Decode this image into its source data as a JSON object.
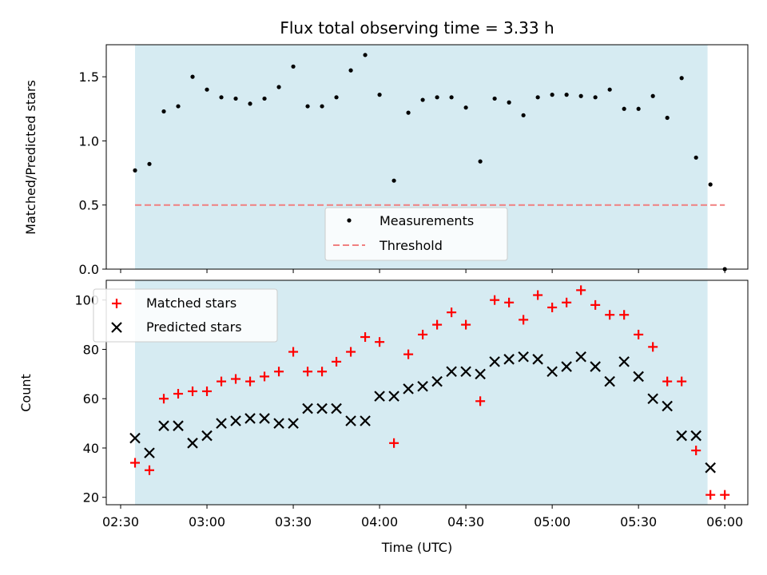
{
  "chart_data": [
    {
      "type": "scatter",
      "title": "Flux total observing time = 3.33 h",
      "ylabel": "Matched/Predicted stars",
      "xlim": [
        "02:25",
        "06:08"
      ],
      "ylim": [
        0,
        1.75
      ],
      "yticks": [
        "0.0",
        "0.5",
        "1.0",
        "1.5"
      ],
      "observing_window": [
        "02:35",
        "05:54"
      ],
      "threshold": 0.5,
      "legend": {
        "position": "bottom-center",
        "entries": [
          "Measurements",
          "Threshold"
        ]
      },
      "series": [
        {
          "name": "Measurements",
          "x": [
            "02:35",
            "02:40",
            "02:45",
            "02:50",
            "02:55",
            "03:00",
            "03:05",
            "03:10",
            "03:15",
            "03:20",
            "03:25",
            "03:30",
            "03:35",
            "03:40",
            "03:45",
            "03:50",
            "03:55",
            "04:00",
            "04:05",
            "04:10",
            "04:15",
            "04:20",
            "04:25",
            "04:30",
            "04:35",
            "04:40",
            "04:45",
            "04:50",
            "04:55",
            "05:00",
            "05:05",
            "05:10",
            "05:15",
            "05:20",
            "05:25",
            "05:30",
            "05:35",
            "05:40",
            "05:45",
            "05:50",
            "05:55",
            "06:00"
          ],
          "values": [
            0.77,
            0.82,
            1.23,
            1.27,
            1.5,
            1.4,
            1.34,
            1.33,
            1.29,
            1.33,
            1.42,
            1.58,
            1.27,
            1.27,
            1.34,
            1.55,
            1.67,
            1.36,
            0.69,
            1.22,
            1.32,
            1.34,
            1.34,
            1.26,
            0.84,
            1.33,
            1.3,
            1.2,
            1.34,
            1.36,
            1.36,
            1.35,
            1.34,
            1.4,
            1.25,
            1.25,
            1.35,
            1.18,
            1.49,
            0.87,
            0.66,
            0.0
          ]
        }
      ]
    },
    {
      "type": "scatter",
      "xlabel": "Time (UTC)",
      "ylabel": "Count",
      "xticks": [
        "02:30",
        "03:00",
        "03:30",
        "04:00",
        "04:30",
        "05:00",
        "05:30",
        "06:00"
      ],
      "yticks": [
        "20",
        "40",
        "60",
        "80",
        "100"
      ],
      "ylim": [
        17,
        108
      ],
      "legend": {
        "position": "top-left",
        "entries": [
          "Matched stars",
          "Predicted stars"
        ]
      },
      "series": [
        {
          "name": "Matched stars",
          "color": "#ff0000",
          "marker": "plus",
          "x": [
            "02:35",
            "02:40",
            "02:45",
            "02:50",
            "02:55",
            "03:00",
            "03:05",
            "03:10",
            "03:15",
            "03:20",
            "03:25",
            "03:30",
            "03:35",
            "03:40",
            "03:45",
            "03:50",
            "03:55",
            "04:00",
            "04:05",
            "04:10",
            "04:15",
            "04:20",
            "04:25",
            "04:30",
            "04:35",
            "04:40",
            "04:45",
            "04:50",
            "04:55",
            "05:00",
            "05:05",
            "05:10",
            "05:15",
            "05:20",
            "05:25",
            "05:30",
            "05:35",
            "05:40",
            "05:45",
            "05:50",
            "05:55",
            "06:00"
          ],
          "values": [
            34,
            31,
            60,
            62,
            63,
            63,
            67,
            68,
            67,
            69,
            71,
            79,
            71,
            71,
            75,
            79,
            85,
            83,
            42,
            78,
            86,
            90,
            95,
            90,
            59,
            100,
            99,
            92,
            102,
            97,
            99,
            104,
            98,
            94,
            94,
            86,
            81,
            67,
            67,
            39,
            21,
            21
          ]
        },
        {
          "name": "Predicted stars",
          "color": "#000000",
          "marker": "x",
          "x": [
            "02:35",
            "02:40",
            "02:45",
            "02:50",
            "02:55",
            "03:00",
            "03:05",
            "03:10",
            "03:15",
            "03:20",
            "03:25",
            "03:30",
            "03:35",
            "03:40",
            "03:45",
            "03:50",
            "03:55",
            "04:00",
            "04:05",
            "04:10",
            "04:15",
            "04:20",
            "04:25",
            "04:30",
            "04:35",
            "04:40",
            "04:45",
            "04:50",
            "04:55",
            "05:00",
            "05:05",
            "05:10",
            "05:15",
            "05:20",
            "05:25",
            "05:30",
            "05:35",
            "05:40",
            "05:45",
            "05:50",
            "05:55"
          ],
          "values": [
            44,
            38,
            49,
            49,
            42,
            45,
            50,
            51,
            52,
            52,
            50,
            50,
            56,
            56,
            56,
            51,
            51,
            61,
            61,
            64,
            65,
            67,
            71,
            71,
            70,
            75,
            76,
            77,
            76,
            71,
            73,
            77,
            73,
            67,
            75,
            69,
            60,
            57,
            45,
            45,
            32
          ]
        }
      ]
    }
  ]
}
